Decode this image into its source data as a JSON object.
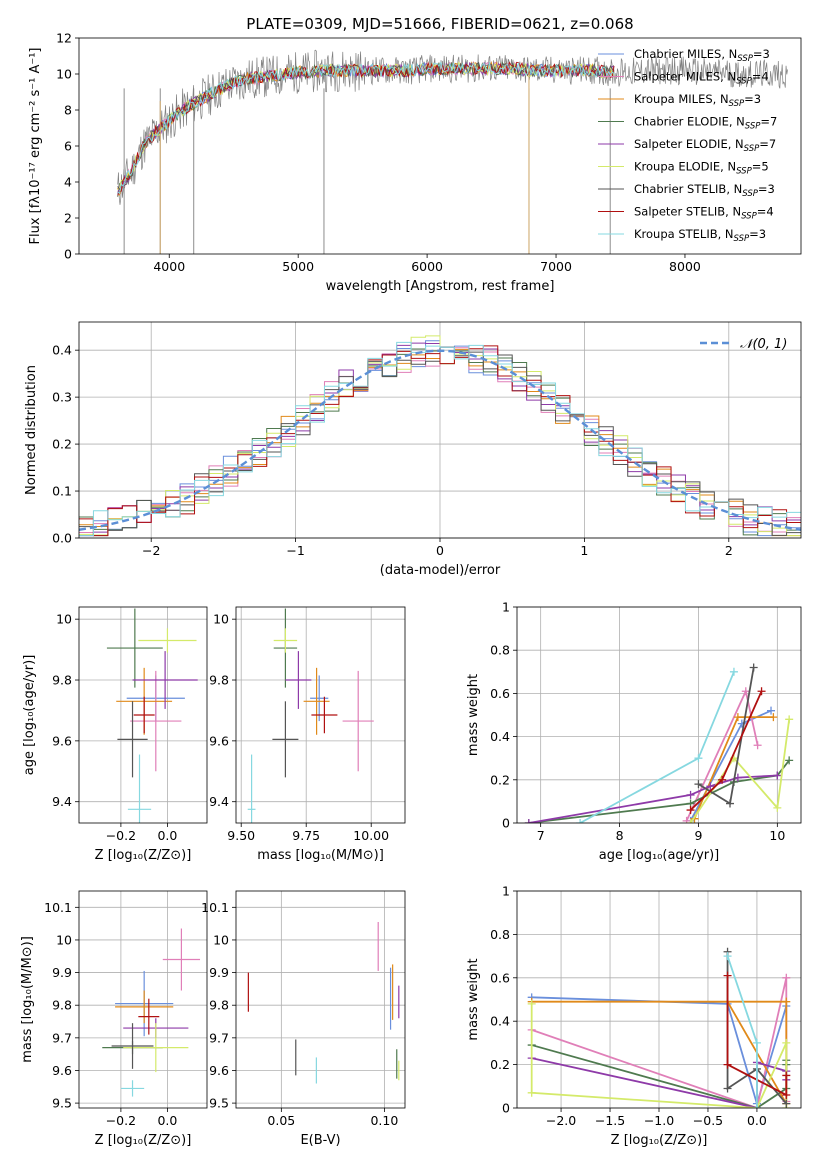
{
  "figure_title": "PLATE=0309, MJD=51666, FIBERID=0621, z=0.068",
  "colors": {
    "chabrier_miles": "#6a8fdc",
    "salpeter_miles": "#e07fb8",
    "kroupa_miles": "#e08a1a",
    "chabrier_elodie": "#4f7a4f",
    "salpeter_elodie": "#8e3aa8",
    "kroupa_elodie": "#d4ea6a",
    "chabrier_stelib": "#555555",
    "salpeter_stelib": "#b01010",
    "kroupa_stelib": "#86d8e0",
    "data": "#808080",
    "gaussian": "#5b8fd6"
  },
  "chart_data": [
    {
      "id": "spectrum",
      "type": "line",
      "title": "PLATE=0309, MJD=51666, FIBERID=0621, z=0.068",
      "xlabel": "wavelength [Angstrom, rest frame]",
      "ylabel": "Flux [fλ10⁻¹⁷ erg cm⁻² s⁻¹ A⁻¹]",
      "xlim": [
        3300,
        8900
      ],
      "ylim": [
        0,
        12
      ],
      "xticks": [
        4000,
        5000,
        6000,
        7000,
        8000
      ],
      "yticks": [
        0,
        2,
        4,
        6,
        8,
        10,
        12
      ],
      "x_range": [
        3600,
        8800
      ],
      "data_series": {
        "name": "",
        "x": [
          3600,
          3700,
          3800,
          3900,
          4000,
          4100,
          4200,
          4300,
          4400,
          4500,
          4600,
          4700,
          4800,
          4900,
          5000,
          5100,
          5200,
          5300,
          5400,
          5500,
          5600,
          5700,
          5800,
          5900,
          6000,
          6100,
          6200,
          6300,
          6400,
          6500,
          6600,
          6700,
          6800,
          6900,
          7000,
          7100,
          7200,
          7300,
          7400,
          7500,
          7600,
          7700,
          7800,
          7900,
          8000,
          8100,
          8200,
          8300,
          8400,
          8500,
          8600,
          8700,
          8800
        ],
        "y": [
          3.5,
          4.5,
          6.0,
          6.8,
          7.4,
          8.0,
          8.4,
          8.8,
          9.2,
          9.5,
          9.7,
          9.8,
          9.9,
          10.0,
          10.1,
          10.1,
          10.2,
          10.2,
          10.2,
          10.2,
          10.2,
          10.2,
          10.2,
          10.2,
          10.3,
          10.3,
          10.3,
          10.3,
          10.3,
          10.3,
          10.3,
          10.3,
          10.2,
          10.2,
          10.2,
          10.2,
          10.2,
          10.2,
          10.1,
          10.1,
          10.1,
          10.2,
          10.2,
          10.2,
          10.2,
          10.1,
          10.1,
          10.1,
          10.0,
          10.0,
          10.0,
          10.0,
          10.0
        ]
      },
      "series": [
        {
          "name": "Chabrier MILES, N_SSP=3",
          "color": "#6a8fdc"
        },
        {
          "name": "Salpeter MILES, N_SSP=4",
          "color": "#e07fb8"
        },
        {
          "name": "Kroupa MILES, N_SSP=3",
          "color": "#e08a1a"
        },
        {
          "name": "Chabrier ELODIE, N_SSP=7",
          "color": "#4f7a4f"
        },
        {
          "name": "Salpeter ELODIE, N_SSP=7",
          "color": "#8e3aa8"
        },
        {
          "name": "Kroupa ELODIE, N_SSP=5",
          "color": "#d4ea6a"
        },
        {
          "name": "Chabrier STELIB, N_SSP=3",
          "color": "#555555"
        },
        {
          "name": "Salpeter STELIB, N_SSP=4",
          "color": "#b01010"
        },
        {
          "name": "Kroupa STELIB, N_SSP=3",
          "color": "#86d8e0"
        }
      ],
      "legend_labels": [
        {
          "main": "Chabrier MILES, N",
          "sub": "SSP",
          "tail": "=3"
        },
        {
          "main": "Salpeter MILES, N",
          "sub": "SSP",
          "tail": "=4"
        },
        {
          "main": "Kroupa MILES, N",
          "sub": "SSP",
          "tail": "=3"
        },
        {
          "main": "Chabrier ELODIE, N",
          "sub": "SSP",
          "tail": "=7"
        },
        {
          "main": "Salpeter ELODIE, N",
          "sub": "SSP",
          "tail": "=7"
        },
        {
          "main": "Kroupa ELODIE, N",
          "sub": "SSP",
          "tail": "=5"
        },
        {
          "main": "Chabrier STELIB, N",
          "sub": "SSP",
          "tail": "=3"
        },
        {
          "main": "Salpeter STELIB, N",
          "sub": "SSP",
          "tail": "=4"
        },
        {
          "main": "Kroupa STELIB, N",
          "sub": "SSP",
          "tail": "=3"
        }
      ],
      "legend_placement": "right"
    },
    {
      "id": "residuals",
      "type": "step",
      "xlabel": "(data-model)/error",
      "ylabel": "Normed distribution",
      "xlim": [
        -2.5,
        2.5
      ],
      "ylim": [
        0,
        0.46
      ],
      "xticks": [
        -2,
        -1,
        0,
        1,
        2
      ],
      "xtick_labels": [
        "−2",
        "−1",
        "0",
        "1",
        "2"
      ],
      "yticks": [
        0.0,
        0.1,
        0.2,
        0.3,
        0.4
      ],
      "ytick_labels": [
        "0.0",
        "0.1",
        "0.2",
        "0.3",
        "0.4"
      ],
      "grid": true,
      "bin_width": 0.1,
      "gaussian": {
        "name": "𝒩(0, 1)",
        "mean": 0,
        "sigma": 1
      },
      "legend_placement": "top-right"
    },
    {
      "id": "age_vs_Z",
      "type": "scatter",
      "xlabel": "Z [log₁₀(Z/Z⊙)]",
      "ylabel": "age  [log₁₀(age/yr)]",
      "xlim": [
        -0.38,
        0.17
      ],
      "ylim": [
        9.33,
        10.04
      ],
      "xticks": [
        -0.2,
        0.0
      ],
      "xtick_labels": [
        "−0.2",
        "0.0"
      ],
      "yticks": [
        9.4,
        9.6,
        9.8,
        10.0
      ],
      "grid": true,
      "points": [
        {
          "c": "#6a8fdc",
          "x": -0.05,
          "xe": 0.25,
          "y": 9.74,
          "ye": 0.15
        },
        {
          "c": "#e07fb8",
          "x": -0.05,
          "xe": 0.22,
          "y": 9.665,
          "ye": 0.33
        },
        {
          "c": "#e08a1a",
          "x": -0.1,
          "xe": 0.24,
          "y": 9.73,
          "ye": 0.22
        },
        {
          "c": "#4f7a4f",
          "x": -0.14,
          "xe": 0.24,
          "y": 9.905,
          "ye": 0.26
        },
        {
          "c": "#8e3aa8",
          "x": -0.01,
          "xe": 0.28,
          "y": 9.8,
          "ye": 0.19
        },
        {
          "c": "#d4ea6a",
          "x": 0.0,
          "xe": 0.25,
          "y": 9.93,
          "ye": 0.08
        },
        {
          "c": "#555555",
          "x": -0.15,
          "xe": 0.13,
          "y": 9.605,
          "ye": 0.25
        },
        {
          "c": "#b01010",
          "x": -0.1,
          "xe": 0.09,
          "y": 9.685,
          "ye": 0.12
        },
        {
          "c": "#86d8e0",
          "x": -0.12,
          "xe": 0.1,
          "y": 9.375,
          "ye": 0.36
        }
      ]
    },
    {
      "id": "age_vs_mass",
      "type": "scatter",
      "xlabel": "mass [log₁₀(M/M⊙)]",
      "ylabel": "",
      "xlim": [
        9.48,
        10.13
      ],
      "ylim": [
        9.33,
        10.04
      ],
      "xticks": [
        9.5,
        9.75,
        10.0
      ],
      "xtick_labels": [
        "9.50",
        "9.75",
        "10.00"
      ],
      "yticks": [
        9.4,
        9.6,
        9.8,
        10.0
      ],
      "grid": true,
      "points": [
        {
          "c": "#6a8fdc",
          "x": 9.8,
          "xe": 0.07,
          "y": 9.74,
          "ye": 0.15
        },
        {
          "c": "#e07fb8",
          "x": 9.95,
          "xe": 0.12,
          "y": 9.665,
          "ye": 0.33
        },
        {
          "c": "#e08a1a",
          "x": 9.79,
          "xe": 0.1,
          "y": 9.73,
          "ye": 0.22
        },
        {
          "c": "#4f7a4f",
          "x": 9.67,
          "xe": 0.09,
          "y": 9.905,
          "ye": 0.26
        },
        {
          "c": "#8e3aa8",
          "x": 9.72,
          "xe": 0.1,
          "y": 9.8,
          "ye": 0.19
        },
        {
          "c": "#d4ea6a",
          "x": 9.67,
          "xe": 0.09,
          "y": 9.93,
          "ye": 0.08
        },
        {
          "c": "#555555",
          "x": 9.67,
          "xe": 0.1,
          "y": 9.605,
          "ye": 0.25
        },
        {
          "c": "#b01010",
          "x": 9.82,
          "xe": 0.1,
          "y": 9.685,
          "ye": 0.12
        },
        {
          "c": "#86d8e0",
          "x": 9.54,
          "xe": 0.03,
          "y": 9.375,
          "ye": 0.36
        }
      ]
    },
    {
      "id": "mass_weight_vs_age",
      "type": "line",
      "xlabel": "age  [log₁₀(age/yr)]",
      "ylabel": "mass weight",
      "xlim": [
        6.7,
        10.3
      ],
      "ylim": [
        0,
        1
      ],
      "xticks": [
        7,
        8,
        9,
        10
      ],
      "yticks": [
        0.0,
        0.2,
        0.4,
        0.6,
        0.8,
        1.0
      ],
      "grid": true,
      "series": [
        {
          "c": "#6a8fdc",
          "x": [
            8.9,
            9.55,
            9.92
          ],
          "y": [
            0.01,
            0.46,
            0.52
          ]
        },
        {
          "c": "#e07fb8",
          "x": [
            8.85,
            9.6,
            9.75
          ],
          "y": [
            0.01,
            0.61,
            0.36
          ]
        },
        {
          "c": "#e08a1a",
          "x": [
            8.95,
            9.5,
            9.95
          ],
          "y": [
            0.02,
            0.49,
            0.49
          ]
        },
        {
          "c": "#4f7a4f",
          "x": [
            6.85,
            8.9,
            9.45,
            10.0,
            10.15
          ],
          "y": [
            0.0,
            0.09,
            0.19,
            0.22,
            0.29
          ]
        },
        {
          "c": "#8e3aa8",
          "x": [
            6.85,
            8.9,
            9.15,
            9.5,
            10.0
          ],
          "y": [
            0.0,
            0.13,
            0.17,
            0.21,
            0.22
          ]
        },
        {
          "c": "#d4ea6a",
          "x": [
            8.9,
            9.45,
            10.0,
            10.15
          ],
          "y": [
            0.0,
            0.3,
            0.07,
            0.48
          ]
        },
        {
          "c": "#555555",
          "x": [
            9.0,
            9.4,
            9.7
          ],
          "y": [
            0.18,
            0.09,
            0.72
          ]
        },
        {
          "c": "#b01010",
          "x": [
            8.9,
            9.3,
            9.8
          ],
          "y": [
            0.06,
            0.2,
            0.61
          ]
        },
        {
          "c": "#86d8e0",
          "x": [
            7.5,
            9.0,
            9.45
          ],
          "y": [
            0.0,
            0.3,
            0.7
          ]
        }
      ]
    },
    {
      "id": "mass_vs_Z",
      "type": "scatter",
      "xlabel": "Z [log₁₀(Z/Z⊙)]",
      "ylabel": "mass [log₁₀(M/M⊙)]",
      "xlim": [
        -0.38,
        0.17
      ],
      "ylim": [
        9.485,
        10.15
      ],
      "xticks": [
        -0.2,
        0.0
      ],
      "xtick_labels": [
        "−0.2",
        "0.0"
      ],
      "yticks": [
        9.5,
        9.6,
        9.7,
        9.8,
        9.9,
        10.0,
        10.1
      ],
      "grid": true,
      "points": [
        {
          "c": "#6a8fdc",
          "x": -0.1,
          "xe": 0.25,
          "y": 9.805,
          "ye": 0.2
        },
        {
          "c": "#e07fb8",
          "x": 0.06,
          "xe": 0.16,
          "y": 9.94,
          "ye": 0.19
        },
        {
          "c": "#e08a1a",
          "x": -0.1,
          "xe": 0.25,
          "y": 9.795,
          "ye": 0.1
        },
        {
          "c": "#4f7a4f",
          "x": -0.15,
          "xe": 0.26,
          "y": 9.67,
          "ye": 0.04
        },
        {
          "c": "#8e3aa8",
          "x": -0.05,
          "xe": 0.28,
          "y": 9.73,
          "ye": 0.06
        },
        {
          "c": "#d4ea6a",
          "x": -0.05,
          "xe": 0.28,
          "y": 9.67,
          "ye": 0.15
        },
        {
          "c": "#555555",
          "x": -0.15,
          "xe": 0.18,
          "y": 9.675,
          "ye": 0.14
        },
        {
          "c": "#b01010",
          "x": -0.08,
          "xe": 0.09,
          "y": 9.765,
          "ye": 0.11
        },
        {
          "c": "#86d8e0",
          "x": -0.15,
          "xe": 0.1,
          "y": 9.545,
          "ye": 0.05
        }
      ]
    },
    {
      "id": "mass_vs_EBV",
      "type": "scatter",
      "xlabel": "E(B-V)",
      "ylabel": "",
      "xlim": [
        0.028,
        0.11
      ],
      "ylim": [
        9.485,
        10.15
      ],
      "xticks": [
        0.05,
        0.1
      ],
      "xtick_labels": [
        "0.05",
        "0.10"
      ],
      "yticks": [
        9.5,
        9.6,
        9.7,
        9.8,
        9.9,
        10.0,
        10.1
      ],
      "grid": true,
      "points": [
        {
          "c": "#6a8fdc",
          "x": 0.103,
          "y": 9.82,
          "ye": 0.19
        },
        {
          "c": "#e07fb8",
          "x": 0.097,
          "y": 9.98,
          "ye": 0.15
        },
        {
          "c": "#e08a1a",
          "x": 0.104,
          "y": 9.84,
          "ye": 0.17
        },
        {
          "c": "#4f7a4f",
          "x": 0.106,
          "y": 9.62,
          "ye": 0.09
        },
        {
          "c": "#8e3aa8",
          "x": 0.107,
          "y": 9.81,
          "ye": 0.1
        },
        {
          "c": "#d4ea6a",
          "x": 0.107,
          "y": 9.6,
          "ye": 0.06
        },
        {
          "c": "#555555",
          "x": 0.057,
          "y": 9.64,
          "ye": 0.11
        },
        {
          "c": "#b01010",
          "x": 0.034,
          "y": 9.84,
          "ye": 0.12
        },
        {
          "c": "#86d8e0",
          "x": 0.067,
          "y": 9.6,
          "ye": 0.08
        }
      ]
    },
    {
      "id": "mass_weight_vs_Z",
      "type": "line",
      "xlabel": "Z [log₁₀(Z/Z⊙)]",
      "ylabel": "mass weight",
      "xlim": [
        -2.45,
        0.45
      ],
      "ylim": [
        0,
        1
      ],
      "xticks": [
        -2.0,
        -1.5,
        -1.0,
        -0.5,
        0.0
      ],
      "xtick_labels": [
        "−2.0",
        "−1.5",
        "−1.0",
        "−0.5",
        "0.0"
      ],
      "yticks": [
        0.0,
        0.2,
        0.4,
        0.6,
        0.8,
        1.0
      ],
      "grid": true,
      "series": [
        {
          "c": "#6a8fdc",
          "x": [
            -2.3,
            -0.3,
            0.0,
            0.3
          ],
          "y": [
            0.51,
            0.48,
            0.02,
            0.47
          ]
        },
        {
          "c": "#e07fb8",
          "x": [
            -2.3,
            0.0,
            0.3,
            0.3
          ],
          "y": [
            0.36,
            0.0,
            0.6,
            0.03
          ]
        },
        {
          "c": "#e08a1a",
          "x": [
            -2.3,
            0.3,
            0.3,
            -0.3
          ],
          "y": [
            0.49,
            0.49,
            0.02,
            0.49
          ]
        },
        {
          "c": "#4f7a4f",
          "x": [
            -2.3,
            0.0,
            0.3,
            0.3,
            0.3
          ],
          "y": [
            0.29,
            0.0,
            0.09,
            0.2,
            0.22
          ]
        },
        {
          "c": "#8e3aa8",
          "x": [
            -2.3,
            0.0,
            0.0,
            0.3,
            0.3
          ],
          "y": [
            0.23,
            0.0,
            0.21,
            0.17,
            0.13
          ]
        },
        {
          "c": "#d4ea6a",
          "x": [
            -2.3,
            -2.3,
            0.0,
            0.3,
            0.3
          ],
          "y": [
            0.48,
            0.07,
            0.0,
            0.3,
            0.0
          ]
        },
        {
          "c": "#555555",
          "x": [
            -0.3,
            -0.3,
            0.0,
            0.3
          ],
          "y": [
            0.72,
            0.09,
            0.18,
            0.02
          ]
        },
        {
          "c": "#b01010",
          "x": [
            -0.3,
            -0.3,
            0.3,
            0.3
          ],
          "y": [
            0.61,
            0.2,
            0.06,
            0.15
          ]
        },
        {
          "c": "#86d8e0",
          "x": [
            -0.3,
            0.0,
            0.0
          ],
          "y": [
            0.7,
            0.3,
            0.0
          ]
        }
      ]
    }
  ]
}
